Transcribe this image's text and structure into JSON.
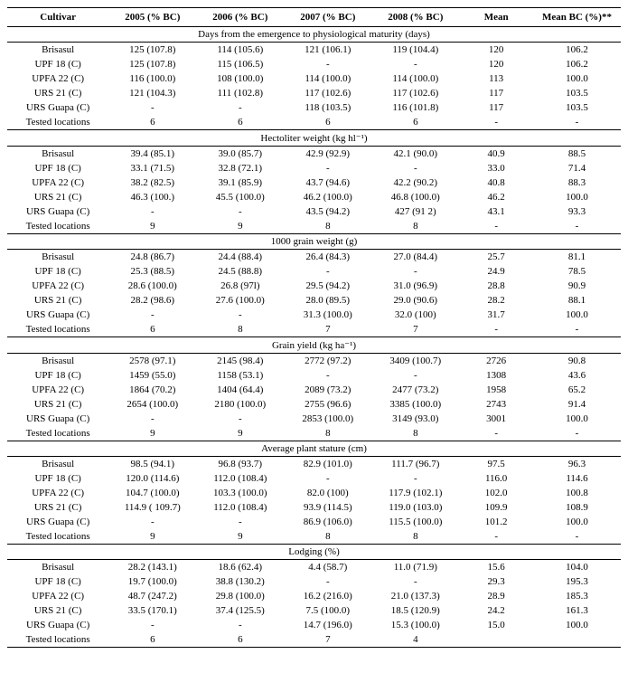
{
  "columns": [
    "Cultivar",
    "2005 (% BC)",
    "2006 (% BC)",
    "2007 (% BC)",
    "2008 (% BC)",
    "Mean",
    "Mean BC (%)**"
  ],
  "col_widths": [
    "110px",
    "95px",
    "95px",
    "95px",
    "95px",
    "80px",
    "95px"
  ],
  "cultivars": [
    "Brisasul",
    "UPF 18 (C)",
    "UPFA 22 (C)",
    "URS 21 (C)",
    "URS Guapa (C)",
    "Tested locations"
  ],
  "sections": [
    {
      "title": "Days from the emergence to physiological maturity (days)",
      "rows": [
        [
          "125 (107.8)",
          "114 (105.6)",
          "121 (106.1)",
          "119 (104.4)",
          "120",
          "106.2"
        ],
        [
          "125 (107.8)",
          "115 (106.5)",
          "-",
          "-",
          "120",
          "106.2"
        ],
        [
          "116 (100.0)",
          "108 (100.0)",
          "114 (100.0)",
          "114 (100.0)",
          "113",
          "100.0"
        ],
        [
          "121 (104.3)",
          "111 (102.8)",
          "117 (102.6)",
          "117 (102.6)",
          "117",
          "103.5"
        ],
        [
          "-",
          "-",
          "118 (103.5)",
          "116 (101.8)",
          "117",
          "103.5"
        ],
        [
          "6",
          "6",
          "6",
          "6",
          "-",
          "-"
        ]
      ]
    },
    {
      "title": "Hectoliter weight (kg hl⁻¹)",
      "rows": [
        [
          "39.4 (85.1)",
          "39.0 (85.7)",
          "42.9 (92.9)",
          "42.1 (90.0)",
          "40.9",
          "88.5"
        ],
        [
          "33.1 (71.5)",
          "32.8 (72.1)",
          "-",
          "-",
          "33.0",
          "71.4"
        ],
        [
          "38.2 (82.5)",
          "39.1 (85.9)",
          "43.7 (94.6)",
          "42.2 (90.2)",
          "40.8",
          "88.3"
        ],
        [
          "46.3 (100.)",
          "45.5 (100.0)",
          "46.2 (100.0)",
          "46.8 (100.0)",
          "46.2",
          "100.0"
        ],
        [
          "-",
          "-",
          "43.5 (94.2)",
          "427 (91 2)",
          "43.1",
          "93.3"
        ],
        [
          "9",
          "9",
          "8",
          "8",
          "-",
          "-"
        ]
      ]
    },
    {
      "title": "1000 grain weight (g)",
      "rows": [
        [
          "24.8 (86.7)",
          "24.4 (88.4)",
          "26.4 (84.3)",
          "27.0 (84.4)",
          "25.7",
          "81.1"
        ],
        [
          "25.3 (88.5)",
          "24.5 (88.8)",
          "-",
          "-",
          "24.9",
          "78.5"
        ],
        [
          "28.6 (100.0)",
          "26.8 (97l)",
          "29.5 (94.2)",
          "31.0 (96.9)",
          "28.8",
          "90.9"
        ],
        [
          "28.2 (98.6)",
          "27.6 (100.0)",
          "28.0 (89.5)",
          "29.0 (90.6)",
          "28.2",
          "88.1"
        ],
        [
          "-",
          "-",
          "31.3 (100.0)",
          "32.0 (100)",
          "31.7",
          "100.0"
        ],
        [
          "6",
          "8",
          "7",
          "7",
          "-",
          "-"
        ]
      ]
    },
    {
      "title": "Grain yield (kg ha⁻¹)",
      "rows": [
        [
          "2578 (97.1)",
          "2145 (98.4)",
          "2772 (97.2)",
          "3409 (100.7)",
          "2726",
          "90.8"
        ],
        [
          "1459 (55.0)",
          "1158 (53.1)",
          "-",
          "-",
          "1308",
          "43.6"
        ],
        [
          "1864 (70.2)",
          "1404 (64.4)",
          "2089 (73.2)",
          "2477 (73.2)",
          "1958",
          "65.2"
        ],
        [
          "2654 (100.0)",
          "2180 (100.0)",
          "2755 (96.6)",
          "3385 (100.0)",
          "2743",
          "91.4"
        ],
        [
          "-",
          "-",
          "2853 (100.0)",
          "3149 (93.0)",
          "3001",
          "100.0"
        ],
        [
          "9",
          "9",
          "8",
          "8",
          "-",
          "-"
        ]
      ]
    },
    {
      "title": "Average plant stature (cm)",
      "rows": [
        [
          "98.5 (94.1)",
          "96.8 (93.7)",
          "82.9 (101.0)",
          "111.7 (96.7)",
          "97.5",
          "96.3"
        ],
        [
          "120.0 (114.6)",
          "112.0 (108.4)",
          "-",
          "-",
          "116.0",
          "114.6"
        ],
        [
          "104.7 (100.0)",
          "103.3 (100.0)",
          "82.0 (100)",
          "117.9 (102.1)",
          "102.0",
          "100.8"
        ],
        [
          "114.9 ( 109.7)",
          "112.0 (108.4)",
          "93.9 (114.5)",
          "119.0 (103.0)",
          "109.9",
          "108.9"
        ],
        [
          "-",
          "-",
          "86.9 (106.0)",
          "115.5 (100.0)",
          "101.2",
          "100.0"
        ],
        [
          "9",
          "9",
          "8",
          "8",
          "-",
          "-"
        ]
      ]
    },
    {
      "title": "Lodging (%)",
      "rows": [
        [
          "28.2 (143.1)",
          "18.6 (62.4)",
          "4.4 (58.7)",
          "11.0 (71.9)",
          "15.6",
          "104.0"
        ],
        [
          "19.7 (100.0)",
          "38.8 (130.2)",
          "-",
          "-",
          "29.3",
          "195.3"
        ],
        [
          "48.7 (247.2)",
          "29.8 (100.0)",
          "16.2 (216.0)",
          "21.0 (137.3)",
          "28.9",
          "185.3"
        ],
        [
          "33.5 (170.1)",
          "37.4 (125.5)",
          "7.5 (100.0)",
          "18.5 (120.9)",
          "24.2",
          "161.3"
        ],
        [
          "-",
          "-",
          "14.7 (196.0)",
          "15.3 (100.0)",
          "15.0",
          "100.0"
        ],
        [
          "6",
          "6",
          "7",
          "4",
          "",
          ""
        ]
      ]
    }
  ],
  "footnote": ""
}
